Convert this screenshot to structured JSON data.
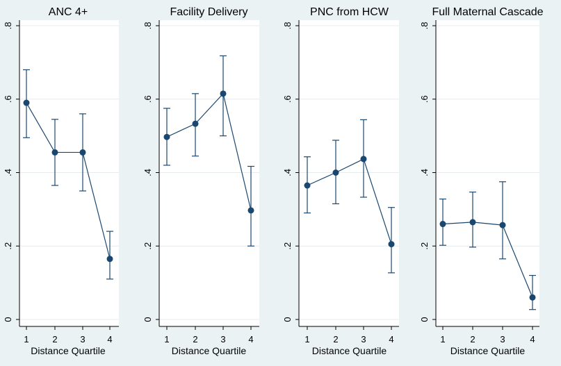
{
  "colors": {
    "background": "#eaf2f3",
    "plot_area": "#ffffff",
    "series": "#1a476f",
    "grid": "#e6ecee",
    "axis": "#000000"
  },
  "chart_data": [
    {
      "type": "line",
      "title": "ANC 4+",
      "xlabel": "Distance Quartile",
      "ylabel": "",
      "x": [
        1,
        2,
        3,
        4
      ],
      "x_tick_labels": [
        "1",
        "2",
        "3",
        "4"
      ],
      "ylim": [
        0,
        0.8
      ],
      "y_ticks": [
        0,
        0.2,
        0.4,
        0.6,
        0.8
      ],
      "y_tick_labels": [
        "0",
        ".2",
        ".4",
        ".6",
        ".8"
      ],
      "grid": true,
      "series": [
        {
          "values": [
            0.59,
            0.455,
            0.455,
            0.165
          ],
          "ci_lower": [
            0.495,
            0.365,
            0.35,
            0.11
          ],
          "ci_upper": [
            0.68,
            0.545,
            0.56,
            0.24
          ]
        }
      ]
    },
    {
      "type": "line",
      "title": "Facility Delivery",
      "xlabel": "Distance Quartile",
      "ylabel": "",
      "x": [
        1,
        2,
        3,
        4
      ],
      "x_tick_labels": [
        "1",
        "2",
        "3",
        "4"
      ],
      "ylim": [
        0,
        0.8
      ],
      "y_ticks": [
        0,
        0.2,
        0.4,
        0.6,
        0.8
      ],
      "y_tick_labels": [
        "0",
        ".2",
        ".4",
        ".6",
        ".8"
      ],
      "grid": true,
      "series": [
        {
          "values": [
            0.497,
            0.533,
            0.615,
            0.297
          ],
          "ci_lower": [
            0.42,
            0.445,
            0.5,
            0.2
          ],
          "ci_upper": [
            0.575,
            0.615,
            0.718,
            0.417
          ]
        }
      ]
    },
    {
      "type": "line",
      "title": "PNC from HCW",
      "xlabel": "Distance Quartile",
      "ylabel": "",
      "x": [
        1,
        2,
        3,
        4
      ],
      "x_tick_labels": [
        "1",
        "2",
        "3",
        "4"
      ],
      "ylim": [
        0,
        0.8
      ],
      "y_ticks": [
        0,
        0.2,
        0.4,
        0.6,
        0.8
      ],
      "y_tick_labels": [
        "0",
        ".2",
        ".4",
        ".6",
        ".8"
      ],
      "grid": true,
      "series": [
        {
          "values": [
            0.365,
            0.4,
            0.437,
            0.205
          ],
          "ci_lower": [
            0.29,
            0.315,
            0.333,
            0.127
          ],
          "ci_upper": [
            0.443,
            0.488,
            0.544,
            0.305
          ]
        }
      ]
    },
    {
      "type": "line",
      "title": "Full Maternal Cascade",
      "xlabel": "Distance Quartile",
      "ylabel": "",
      "x": [
        1,
        2,
        3,
        4
      ],
      "x_tick_labels": [
        "1",
        "2",
        "3",
        "4"
      ],
      "ylim": [
        0,
        0.8
      ],
      "y_ticks": [
        0,
        0.2,
        0.4,
        0.6,
        0.8
      ],
      "y_tick_labels": [
        "0",
        ".2",
        ".4",
        ".6",
        ".8"
      ],
      "grid": true,
      "series": [
        {
          "values": [
            0.26,
            0.265,
            0.257,
            0.06
          ],
          "ci_lower": [
            0.202,
            0.197,
            0.165,
            0.027
          ],
          "ci_upper": [
            0.328,
            0.347,
            0.375,
            0.12
          ]
        }
      ]
    }
  ]
}
